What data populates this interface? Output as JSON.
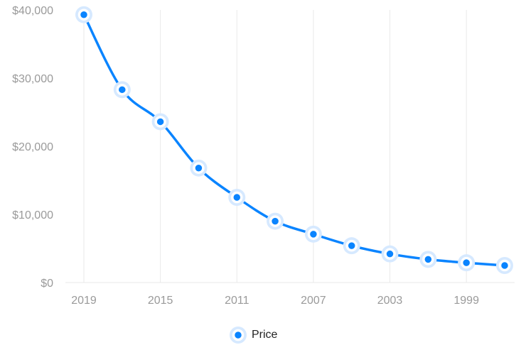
{
  "colors": {
    "accent": "#0a84ff",
    "halo": "#d6e9ff",
    "grid": "#e9e9e9",
    "tick": "#9a9a9a"
  },
  "chart_data": {
    "type": "line",
    "title": "",
    "xlabel": "",
    "ylabel": "",
    "x": [
      2019,
      2017,
      2015,
      2013,
      2011,
      2009,
      2007,
      2005,
      2003,
      2001,
      1999,
      1997
    ],
    "x_tick_labels": [
      "2019",
      "2015",
      "2011",
      "2007",
      "2003",
      "1999"
    ],
    "y_tick_labels": [
      "$0",
      "$10,000",
      "$20,000",
      "$30,000",
      "$40,000"
    ],
    "ylim": [
      0,
      40000
    ],
    "x_reversed": true,
    "grid": "vertical",
    "legend": "bottom-center",
    "series": [
      {
        "name": "Price",
        "values": [
          39300,
          28300,
          23600,
          16800,
          12500,
          9000,
          7100,
          5400,
          4200,
          3400,
          2900,
          2500
        ]
      }
    ]
  }
}
